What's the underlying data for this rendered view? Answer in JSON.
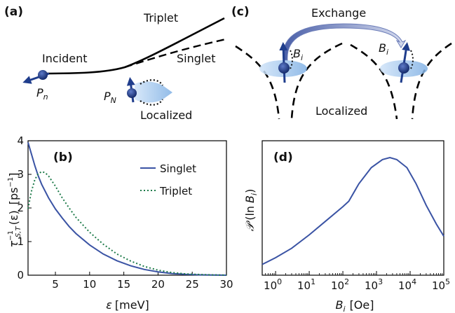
{
  "panels": {
    "a": {
      "tag": "(a)",
      "labels": {
        "triplet": "Triplet",
        "singlet": "Singlet",
        "incident": "Incident",
        "localized": "Localized"
      },
      "p_small": {
        "base": "P",
        "sub": "n"
      },
      "p_large": {
        "base": "P",
        "sub": "N"
      }
    },
    "c": {
      "tag": "(c)",
      "labels": {
        "exchange": "Exchange",
        "localized": "Localized"
      },
      "b_field": {
        "base": "B",
        "sub": "i"
      }
    },
    "b": {
      "tag": "(b)"
    },
    "d": {
      "tag": "(d)"
    }
  },
  "colors": {
    "singlet": "#3a53a4",
    "triplet": "#1e7b4a",
    "spin": "#1f3d8c",
    "cloud": "#9cc3ec"
  },
  "chart_data": [
    {
      "id": "b",
      "type": "line",
      "xlabel": {
        "base": "ε",
        "unit": "[meV]"
      },
      "ylabel": {
        "base": "τ",
        "sub": "S,T",
        "sup": "−1",
        "arg": "(ε)",
        "unit": "[ps",
        "unit_sup": "−1",
        "unit_end": "]"
      },
      "xlim": [
        1,
        30
      ],
      "ylim": [
        0,
        4
      ],
      "xticks": [
        5,
        10,
        15,
        20,
        25,
        30
      ],
      "yticks": [
        0,
        1,
        2,
        3,
        4
      ],
      "legend_position": "top-right",
      "series": [
        {
          "name": "Singlet",
          "style": "solid",
          "x": [
            1,
            1.5,
            2,
            2.5,
            3,
            4,
            5,
            6,
            7,
            8,
            10,
            12,
            14,
            16,
            18,
            20,
            22,
            24,
            26,
            28,
            30
          ],
          "y": [
            3.95,
            3.6,
            3.25,
            2.95,
            2.7,
            2.3,
            1.97,
            1.7,
            1.45,
            1.24,
            0.9,
            0.63,
            0.43,
            0.28,
            0.17,
            0.1,
            0.05,
            0.025,
            0.01,
            0.004,
            0.001
          ]
        },
        {
          "name": "Triplet",
          "style": "dotted",
          "x": [
            1,
            1.5,
            2,
            2.5,
            3,
            3.5,
            4,
            5,
            6,
            7,
            8,
            10,
            12,
            14,
            16,
            18,
            20,
            22,
            24,
            26,
            28,
            30
          ],
          "y": [
            1.98,
            2.5,
            2.85,
            3.02,
            3.08,
            3.05,
            2.95,
            2.65,
            2.3,
            2.0,
            1.72,
            1.28,
            0.92,
            0.63,
            0.42,
            0.26,
            0.15,
            0.08,
            0.04,
            0.02,
            0.008,
            0.003
          ]
        }
      ]
    },
    {
      "id": "d",
      "type": "line",
      "xscale": "log",
      "xlabel": {
        "base": "B",
        "sub": "i",
        "unit": "[Oe]"
      },
      "ylabel": {
        "base": "𝒫",
        "arg_open": "(ln",
        "arg_base": "B",
        "arg_sub": "i",
        "arg_close": ")"
      },
      "xlim": [
        0.4,
        100000
      ],
      "yticks_shown": false,
      "xticks": [
        {
          "value": 1,
          "base": "10",
          "exp": "0"
        },
        {
          "value": 10,
          "base": "10",
          "exp": "1"
        },
        {
          "value": 100,
          "base": "10",
          "exp": "2"
        },
        {
          "value": 1000,
          "base": "10",
          "exp": "3"
        },
        {
          "value": 10000,
          "base": "10",
          "exp": "4"
        },
        {
          "value": 100000,
          "base": "10",
          "exp": "5"
        }
      ],
      "series": [
        {
          "style": "solid",
          "x": [
            0.4,
            1,
            3,
            10,
            30,
            100,
            150,
            300,
            700,
            1500,
            2500,
            4000,
            8000,
            15000,
            30000,
            60000,
            100000
          ],
          "y": [
            0.08,
            0.13,
            0.2,
            0.3,
            0.4,
            0.51,
            0.55,
            0.68,
            0.8,
            0.86,
            0.875,
            0.86,
            0.8,
            0.68,
            0.52,
            0.38,
            0.29
          ]
        }
      ]
    }
  ]
}
